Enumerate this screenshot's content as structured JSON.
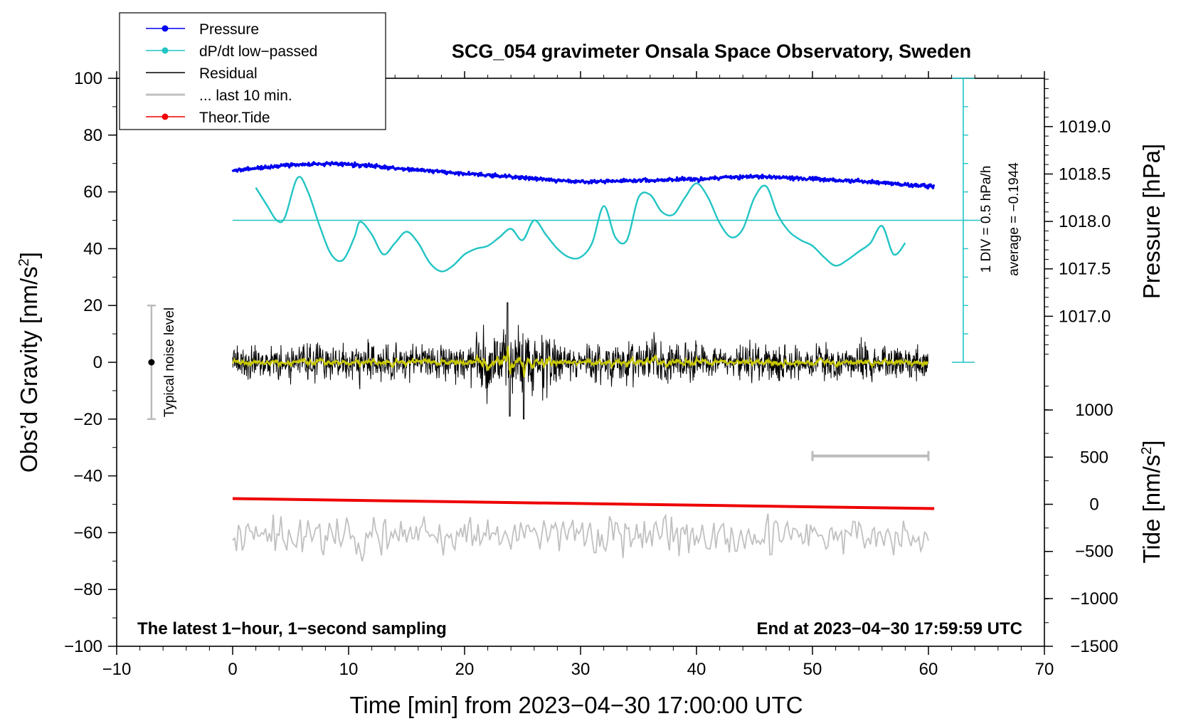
{
  "chart_data": {
    "type": "line",
    "title": "SCG_054 gravimeter Onsala Space Observatory, Sweden",
    "xlabel": "Time [min] from 2023−04−30 17:00:00 UTC",
    "ylabel_left": "Obs’d Gravity [nm/s",
    "ylabel_left_sup": "2",
    "ylabel_left_close": "]",
    "ylabel_right_top": "Pressure [hPa]",
    "ylabel_right_bottom": "Tide [nm/s",
    "ylabel_right_bottom_sup": "2",
    "ylabel_right_bottom_close": "]",
    "xlim": [
      -10,
      70
    ],
    "ylim": [
      -100,
      100
    ],
    "x_ticks": [
      "−10",
      "0",
      "10",
      "20",
      "30",
      "40",
      "50",
      "60",
      "70"
    ],
    "x_tick_values": [
      -10,
      0,
      10,
      20,
      30,
      40,
      50,
      60,
      70
    ],
    "y_ticks": [
      "100",
      "80",
      "60",
      "40",
      "20",
      "0",
      "−20",
      "−40",
      "−60",
      "−80",
      "−100"
    ],
    "y_tick_values": [
      100,
      80,
      60,
      40,
      20,
      0,
      -20,
      -40,
      -60,
      -80,
      -100
    ],
    "pressure_axis": {
      "ticks": [
        "1019.0",
        "1018.5",
        "1018.0",
        "1017.5",
        "1017.0"
      ],
      "tick_values": [
        1019.0,
        1018.5,
        1018.0,
        1017.5,
        1017.0
      ],
      "gravity_equivalent": [
        83,
        66.3,
        49.6,
        32.9,
        16.2
      ]
    },
    "tide_axis": {
      "ticks": [
        "1000",
        "500",
        "0",
        "−500",
        "−1000",
        "−1500"
      ],
      "tick_values": [
        1000,
        500,
        0,
        -500,
        -1000,
        -1500
      ],
      "gravity_equivalent": [
        -16.8,
        -33.4,
        -50,
        -66.6,
        -83.2,
        -100
      ]
    },
    "legend": [
      {
        "label": "Pressure",
        "color": "#0000ee",
        "style": "line-dot"
      },
      {
        "label": "dP/dt low−passed",
        "color": "#22c4c4",
        "style": "line-dot"
      },
      {
        "label": "Residual",
        "color": "#000000",
        "style": "line"
      },
      {
        "label": "... last 10 min.",
        "color": "#c0c0c0",
        "style": "line"
      },
      {
        "label": "Theor.Tide",
        "color": "#ee0000",
        "style": "line-dot"
      }
    ],
    "colors": {
      "pressure": "#0000ee",
      "dpdt": "#22c4c4",
      "residual": "#000000",
      "residual_smooth": "#c8c800",
      "last10": "#c0c0c0",
      "tide": "#ee0000",
      "dpdt_scale": "#22c4c4"
    },
    "series": [
      {
        "name": "Pressure",
        "x": [
          0,
          5,
          9,
          15,
          20,
          25,
          30,
          35,
          40,
          45,
          50,
          55,
          60
        ],
        "y": [
          67.5,
          69.5,
          70,
          68,
          66.5,
          65,
          63.5,
          64,
          64.5,
          65.5,
          64.5,
          63.5,
          62
        ]
      },
      {
        "name": "dP/dt low−passed",
        "x": [
          2,
          3,
          3.8,
          4.5,
          5.6,
          6.5,
          7.5,
          8.5,
          9.5,
          10.5,
          11,
          12,
          13,
          14,
          15,
          16,
          17,
          18,
          19,
          20,
          21,
          22,
          23,
          24,
          25,
          26,
          27,
          28,
          29,
          30,
          31,
          32,
          33,
          34,
          35,
          36,
          37,
          38,
          39,
          40,
          41,
          42,
          43,
          44,
          45,
          46,
          47,
          48,
          49,
          50,
          51,
          52,
          53,
          54,
          55,
          56,
          57,
          58
        ],
        "y": [
          61.5,
          55,
          50,
          51,
          65,
          60,
          48,
          38,
          36,
          44,
          49.5,
          45,
          38,
          42,
          46,
          42,
          35,
          32,
          34,
          38,
          40,
          41,
          44,
          47,
          43,
          50,
          45,
          40,
          37,
          37,
          42,
          55,
          44,
          43,
          58,
          59,
          53,
          52,
          58,
          63,
          58,
          49,
          44,
          47,
          58,
          62,
          52,
          46,
          43,
          41,
          37,
          34,
          36,
          39,
          42,
          48,
          38,
          42
        ]
      },
      {
        "name": "Residual",
        "x_range": [
          0,
          60
        ],
        "center": 0,
        "typical_amplitude": 8,
        "peak_range": [
          -20,
          21
        ]
      },
      {
        "name": "... last 10 min.",
        "x_range": [
          0,
          60
        ],
        "center": -61,
        "typical_amplitude": 6
      },
      {
        "name": "Theor.Tide",
        "x": [
          0,
          60.5
        ],
        "y": [
          -48,
          -51.5
        ]
      }
    ],
    "dpdt_average_line": 50,
    "dpdt_scale_bar": {
      "x": 63,
      "y_bottom": 0,
      "y_top": 100,
      "divisions": 10,
      "label_1": "1 DIV = 0.5 hPa/h",
      "label_2": "average = −0.1944"
    },
    "noise_bar": {
      "x": -7,
      "y_low": -20,
      "y_high": 20,
      "center": 0,
      "label": "Typical noise level"
    },
    "ten_min_bar": {
      "x_start": 50,
      "x_end": 60,
      "y": -33
    },
    "footnote_left": "The latest 1−hour, 1−second sampling",
    "footnote_right": "End at 2023−04−30 17:59:59 UTC"
  }
}
